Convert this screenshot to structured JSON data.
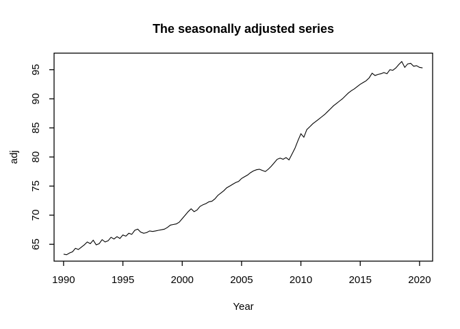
{
  "figure": {
    "background": "#ffffff",
    "foreground": "#000000"
  },
  "chart_data": {
    "type": "line",
    "title": "The seasonally adjusted series",
    "xlabel": "Year",
    "ylabel": "adj",
    "grid": false,
    "legend": "none",
    "line_color": "#000000",
    "x_ticks": [
      1990,
      1995,
      2000,
      2005,
      2010,
      2015,
      2020
    ],
    "y_ticks": [
      65,
      70,
      75,
      80,
      85,
      90,
      95
    ],
    "xlim": [
      1989.2,
      2021.1
    ],
    "ylim": [
      62.1,
      97.85
    ],
    "series": [
      {
        "name": "adj",
        "x_start": 1990.0,
        "x_step": 0.25,
        "values": [
          63.3,
          63.2,
          63.5,
          63.7,
          64.3,
          64.1,
          64.5,
          64.9,
          65.4,
          65.1,
          65.7,
          64.9,
          65.1,
          65.8,
          65.4,
          65.6,
          66.2,
          65.9,
          66.3,
          66.0,
          66.6,
          66.4,
          66.9,
          66.7,
          67.4,
          67.6,
          67.1,
          66.9,
          67.0,
          67.3,
          67.2,
          67.3,
          67.4,
          67.5,
          67.6,
          67.9,
          68.3,
          68.4,
          68.5,
          68.8,
          69.4,
          70.0,
          70.6,
          71.1,
          70.6,
          70.9,
          71.5,
          71.8,
          72.0,
          72.3,
          72.4,
          72.8,
          73.4,
          73.8,
          74.2,
          74.7,
          75.0,
          75.3,
          75.6,
          75.8,
          76.3,
          76.6,
          76.9,
          77.3,
          77.6,
          77.8,
          77.9,
          77.7,
          77.5,
          77.9,
          78.4,
          79.0,
          79.6,
          79.8,
          79.6,
          79.9,
          79.5,
          80.5,
          81.5,
          82.8,
          84.0,
          83.4,
          84.7,
          85.2,
          85.7,
          86.1,
          86.5,
          86.9,
          87.3,
          87.8,
          88.3,
          88.8,
          89.2,
          89.6,
          90.0,
          90.5,
          91.0,
          91.4,
          91.7,
          92.1,
          92.5,
          92.8,
          93.1,
          93.6,
          94.4,
          94.0,
          94.2,
          94.3,
          94.5,
          94.3,
          95.0,
          94.9,
          95.3,
          95.9,
          96.4,
          95.4,
          96.0,
          96.1,
          95.6,
          95.7,
          95.4,
          95.3
        ]
      }
    ]
  }
}
